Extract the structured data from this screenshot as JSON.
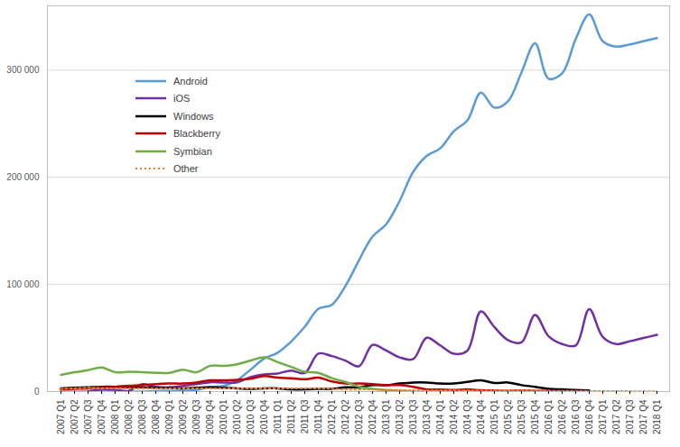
{
  "chart_data": {
    "type": "line",
    "categories": [
      "2007 Q1",
      "2007 Q2",
      "2007 Q3",
      "2007 Q4",
      "2008 Q1",
      "2008 Q2",
      "2008 Q3",
      "2008 Q4",
      "2009 Q1",
      "2009 Q2",
      "2009 Q3",
      "2009 Q4",
      "2010 Q1",
      "2010 Q2",
      "2010 Q3",
      "2010 Q4",
      "2011 Q1",
      "2011 Q2",
      "2011 Q3",
      "2011 Q4",
      "2012 Q1",
      "2012 Q2",
      "2012 Q3",
      "2012 Q4",
      "2013 Q1",
      "2013 Q2",
      "2013 Q3",
      "2013 Q4",
      "2014 Q1",
      "2014 Q2",
      "2014 Q3",
      "2014 Q4",
      "2015 Q1",
      "2015 Q2",
      "2015 Q3",
      "2015 Q4",
      "2016 Q1",
      "2016 Q2",
      "2016 Q3",
      "2016 Q4",
      "2017 Q1",
      "2017 Q2",
      "2017 Q3",
      "2017 Q4",
      "2018 Q1"
    ],
    "series": [
      {
        "name": "Android",
        "color": "#5b9bd5",
        "line_style": "solid",
        "values": [
          0,
          0,
          0,
          0,
          0,
          0,
          0,
          500,
          600,
          800,
          1400,
          4200,
          5200,
          10600,
          20500,
          30800,
          36300,
          46800,
          60500,
          77100,
          81000,
          98500,
          122500,
          144700,
          156000,
          177900,
          205000,
          220000,
          227000,
          243000,
          253000,
          279000,
          265000,
          271000,
          298000,
          325000,
          292000,
          297000,
          329000,
          352000,
          327000,
          322000,
          324000,
          327000,
          330000
        ]
      },
      {
        "name": "iOS",
        "color": "#7030a0",
        "line_style": "solid",
        "values": [
          null,
          null,
          300,
          1900,
          1700,
          700,
          6900,
          4400,
          3900,
          5300,
          7000,
          8700,
          8400,
          8700,
          13500,
          16000,
          16900,
          19600,
          17300,
          35500,
          33100,
          28900,
          23600,
          43500,
          38300,
          31900,
          30300,
          50200,
          43100,
          35300,
          38200,
          74800,
          60200,
          48100,
          46000,
          71500,
          51600,
          44400,
          43000,
          77000,
          51000,
          44300,
          47000,
          50000,
          53000
        ]
      },
      {
        "name": "Windows",
        "color": "#000000",
        "line_style": "solid",
        "values": [
          3000,
          3500,
          4000,
          4500,
          4500,
          4000,
          4000,
          3500,
          3500,
          3000,
          3500,
          4000,
          3500,
          3000,
          2500,
          3000,
          3000,
          2000,
          2000,
          2500,
          2500,
          4000,
          4000,
          6000,
          6000,
          7500,
          8500,
          8500,
          7500,
          7500,
          9000,
          10500,
          8000,
          8500,
          6000,
          4500,
          2500,
          2000,
          1500,
          1000,
          null,
          null,
          null,
          null,
          null
        ]
      },
      {
        "name": "Blackberry",
        "color": "#c00000",
        "line_style": "solid",
        "values": [
          2000,
          2500,
          3000,
          4000,
          4500,
          5500,
          6000,
          7000,
          7500,
          7500,
          8500,
          10500,
          10500,
          11000,
          12000,
          14500,
          13000,
          12500,
          11500,
          13000,
          9500,
          7500,
          7500,
          7000,
          6000,
          6000,
          4500,
          2000,
          1900,
          1500,
          2000,
          1200,
          900,
          700,
          900,
          600,
          600,
          400,
          400,
          200,
          null,
          null,
          null,
          null,
          null
        ]
      },
      {
        "name": "Symbian",
        "color": "#70ad47",
        "line_style": "solid",
        "values": [
          15500,
          18000,
          20000,
          22500,
          18000,
          18500,
          18000,
          17500,
          17500,
          20500,
          18000,
          24000,
          24000,
          25500,
          29000,
          32000,
          27500,
          23000,
          18500,
          17500,
          12500,
          9000,
          4500,
          2500,
          1500,
          600,
          300,
          null,
          null,
          null,
          null,
          null,
          null,
          null,
          null,
          null,
          null,
          null,
          null,
          null,
          null,
          null,
          null,
          null,
          null
        ]
      },
      {
        "name": "Other",
        "color": "#ed7d31",
        "line_style": "dotted",
        "values": [
          2500,
          3000,
          3500,
          3000,
          3000,
          3000,
          3000,
          3000,
          3000,
          3000,
          3000,
          3000,
          3000,
          3000,
          3000,
          3000,
          3000,
          3000,
          3000,
          3000,
          2500,
          2000,
          2000,
          2000,
          1500,
          1500,
          1000,
          1000,
          1000,
          1000,
          1000,
          800,
          800,
          800,
          800,
          800,
          600,
          600,
          500,
          500,
          400,
          400,
          300,
          300,
          300
        ]
      }
    ],
    "ylim": [
      0,
      360000
    ],
    "yticks": [
      0,
      {
        "value": 100000,
        "label": "100 000"
      },
      {
        "value": 200000,
        "label": "200 000"
      },
      {
        "value": 300000,
        "label": "300 000"
      }
    ],
    "grid": true,
    "legend": "upper left"
  }
}
